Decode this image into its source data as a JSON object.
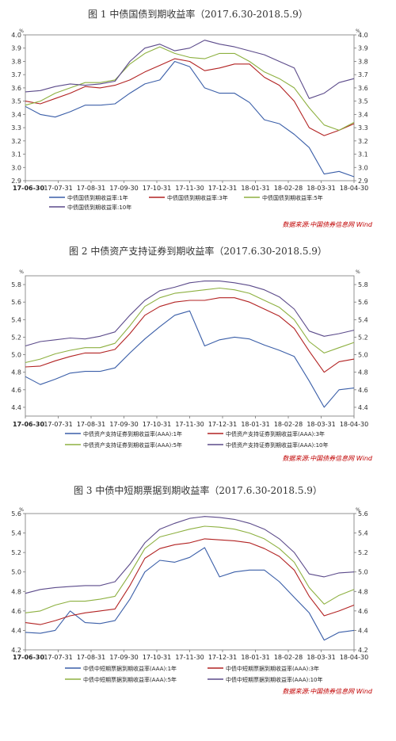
{
  "chart_data": [
    {
      "type": "line",
      "title": "图 1 中债国债到期收益率（2017.6.30-2018.5.9）",
      "unit": "%",
      "ylim": [
        2.9,
        4.0
      ],
      "yticks": [
        "2.9",
        "3.0",
        "3.1",
        "3.2",
        "3.3",
        "3.4",
        "3.5",
        "3.6",
        "3.7",
        "3.8",
        "3.9",
        "4.0"
      ],
      "xticks": [
        "17-06-30",
        "17-07-31",
        "17-08-31",
        "17-09-30",
        "17-10-31",
        "17-11-30",
        "17-12-31",
        "18-01-31",
        "18-02-28",
        "18-03-31",
        "18-04-30"
      ],
      "x": [
        "17-06-30",
        "17-07-15",
        "17-07-31",
        "17-08-15",
        "17-08-31",
        "17-09-15",
        "17-09-30",
        "17-10-15",
        "17-10-31",
        "17-11-15",
        "17-11-30",
        "17-12-15",
        "17-12-31",
        "18-01-15",
        "18-01-31",
        "18-02-15",
        "18-02-28",
        "18-03-15",
        "18-03-31",
        "18-04-10",
        "18-04-20",
        "18-04-30",
        "18-05-09"
      ],
      "series": [
        {
          "name": "中债国债到期收益率:1年",
          "color": "#3a5ea8",
          "values": [
            3.46,
            3.4,
            3.38,
            3.42,
            3.47,
            3.47,
            3.48,
            3.56,
            3.63,
            3.66,
            3.8,
            3.76,
            3.6,
            3.56,
            3.56,
            3.49,
            3.36,
            3.33,
            3.25,
            3.15,
            2.95,
            2.97,
            2.93
          ]
        },
        {
          "name": "中债国债到期收益率:3年",
          "color": "#b22222",
          "values": [
            3.5,
            3.48,
            3.52,
            3.56,
            3.61,
            3.6,
            3.62,
            3.66,
            3.72,
            3.77,
            3.82,
            3.8,
            3.73,
            3.75,
            3.78,
            3.78,
            3.68,
            3.62,
            3.5,
            3.3,
            3.24,
            3.28,
            3.33
          ]
        },
        {
          "name": "中债国债到期收益率:5年",
          "color": "#8db040",
          "values": [
            3.47,
            3.5,
            3.56,
            3.6,
            3.64,
            3.64,
            3.66,
            3.78,
            3.86,
            3.91,
            3.86,
            3.83,
            3.82,
            3.86,
            3.86,
            3.8,
            3.72,
            3.67,
            3.6,
            3.45,
            3.32,
            3.28,
            3.34
          ]
        },
        {
          "name": "中债国债到期收益率:10年",
          "color": "#5b4a8a",
          "values": [
            3.57,
            3.58,
            3.61,
            3.63,
            3.62,
            3.63,
            3.65,
            3.8,
            3.9,
            3.93,
            3.88,
            3.9,
            3.96,
            3.93,
            3.91,
            3.88,
            3.85,
            3.8,
            3.75,
            3.52,
            3.56,
            3.64,
            3.67
          ]
        }
      ],
      "source": "数据来源:中国债券信息网 Wind"
    },
    {
      "type": "line",
      "title": "图 2 中债资产支持证券到期收益率（2017.6.30-2018.5.9）",
      "unit": "%",
      "ylim": [
        4.3,
        5.9
      ],
      "yticks": [
        "4.4",
        "4.6",
        "4.8",
        "5.0",
        "5.2",
        "5.4",
        "5.6",
        "5.8"
      ],
      "xticks": [
        "17-06-30",
        "17-07-31",
        "17-08-31",
        "17-09-30",
        "17-10-31",
        "17-11-30",
        "17-12-31",
        "18-01-31",
        "18-02-28",
        "18-03-31",
        "18-04-30"
      ],
      "x": [
        "17-06-30",
        "17-07-15",
        "17-07-31",
        "17-08-15",
        "17-08-31",
        "17-09-15",
        "17-09-30",
        "17-10-15",
        "17-10-31",
        "17-11-15",
        "17-11-30",
        "17-12-15",
        "17-12-31",
        "18-01-15",
        "18-01-31",
        "18-02-15",
        "18-02-28",
        "18-03-15",
        "18-03-31",
        "18-04-10",
        "18-04-20",
        "18-04-30",
        "18-05-09"
      ],
      "series": [
        {
          "name": "中债资产支持证券到期收益率(AAA):1年",
          "color": "#3a5ea8",
          "values": [
            4.75,
            4.66,
            4.72,
            4.79,
            4.81,
            4.81,
            4.85,
            5.02,
            5.18,
            5.32,
            5.45,
            5.5,
            5.1,
            5.17,
            5.2,
            5.18,
            5.11,
            5.05,
            4.98,
            4.7,
            4.4,
            4.6,
            4.62
          ]
        },
        {
          "name": "中债资产支持证券到期收益率(AAA):3年",
          "color": "#b22222",
          "values": [
            4.86,
            4.87,
            4.93,
            4.98,
            5.02,
            5.02,
            5.06,
            5.24,
            5.45,
            5.55,
            5.6,
            5.62,
            5.62,
            5.65,
            5.65,
            5.6,
            5.52,
            5.44,
            5.3,
            5.04,
            4.8,
            4.92,
            4.95
          ]
        },
        {
          "name": "中债资产支持证券到期收益率(AAA):5年",
          "color": "#8db040",
          "values": [
            4.91,
            4.95,
            5.01,
            5.05,
            5.08,
            5.08,
            5.13,
            5.33,
            5.55,
            5.65,
            5.7,
            5.72,
            5.74,
            5.76,
            5.74,
            5.7,
            5.62,
            5.54,
            5.4,
            5.15,
            5.02,
            5.08,
            5.14
          ]
        },
        {
          "name": "中债资产支持证券到期收益率(AAA):10年",
          "color": "#5b4a8a",
          "values": [
            5.1,
            5.15,
            5.17,
            5.19,
            5.18,
            5.21,
            5.26,
            5.45,
            5.62,
            5.73,
            5.77,
            5.82,
            5.84,
            5.84,
            5.82,
            5.79,
            5.74,
            5.66,
            5.52,
            5.27,
            5.21,
            5.24,
            5.28
          ]
        }
      ],
      "source": "数据来源:中国债券信息网 Wind"
    },
    {
      "type": "line",
      "title": "图 3 中债中短期票据到期收益率（2017.6.30-2018.5.9）",
      "unit": "%",
      "ylim": [
        4.2,
        5.6
      ],
      "yticks": [
        "4.2",
        "4.4",
        "4.6",
        "4.8",
        "5.0",
        "5.2",
        "5.4",
        "5.6"
      ],
      "xticks": [
        "17-06-30",
        "17-07-31",
        "17-08-31",
        "17-09-30",
        "17-10-31",
        "17-11-30",
        "17-12-31",
        "18-01-31",
        "18-02-28",
        "18-03-31",
        "18-04-30"
      ],
      "x": [
        "17-06-30",
        "17-07-15",
        "17-07-31",
        "17-08-15",
        "17-08-31",
        "17-09-15",
        "17-09-30",
        "17-10-15",
        "17-10-31",
        "17-11-15",
        "17-11-30",
        "17-12-15",
        "17-12-31",
        "18-01-15",
        "18-01-31",
        "18-02-15",
        "18-02-28",
        "18-03-15",
        "18-03-31",
        "18-04-10",
        "18-04-20",
        "18-04-30",
        "18-05-09"
      ],
      "series": [
        {
          "name": "中债中短期票据到期收益率(AAA):1年",
          "color": "#3a5ea8",
          "values": [
            4.38,
            4.37,
            4.4,
            4.6,
            4.48,
            4.47,
            4.5,
            4.72,
            5.0,
            5.12,
            5.1,
            5.15,
            5.25,
            4.95,
            5.0,
            5.02,
            5.02,
            4.9,
            4.74,
            4.58,
            4.3,
            4.38,
            4.4
          ]
        },
        {
          "name": "中债中短期票据到期收益率(AAA):3年",
          "color": "#b22222",
          "values": [
            4.48,
            4.46,
            4.5,
            4.55,
            4.58,
            4.6,
            4.62,
            4.86,
            5.14,
            5.24,
            5.28,
            5.3,
            5.34,
            5.33,
            5.32,
            5.3,
            5.24,
            5.16,
            5.02,
            4.75,
            4.55,
            4.6,
            4.66
          ]
        },
        {
          "name": "中债中短期票据到期收益率(AAA):5年",
          "color": "#8db040",
          "values": [
            4.58,
            4.6,
            4.66,
            4.7,
            4.7,
            4.72,
            4.75,
            4.98,
            5.24,
            5.36,
            5.4,
            5.44,
            5.47,
            5.46,
            5.44,
            5.4,
            5.34,
            5.24,
            5.1,
            4.84,
            4.67,
            4.76,
            4.82
          ]
        },
        {
          "name": "中债中短期票据到期收益率(AAA):10年",
          "color": "#5b4a8a",
          "values": [
            4.78,
            4.82,
            4.84,
            4.85,
            4.86,
            4.86,
            4.9,
            5.08,
            5.3,
            5.44,
            5.5,
            5.55,
            5.57,
            5.56,
            5.54,
            5.5,
            5.44,
            5.34,
            5.2,
            4.98,
            4.95,
            4.99,
            5.0
          ]
        }
      ],
      "source": "数据来源:中国债券信息网 Wind"
    }
  ]
}
